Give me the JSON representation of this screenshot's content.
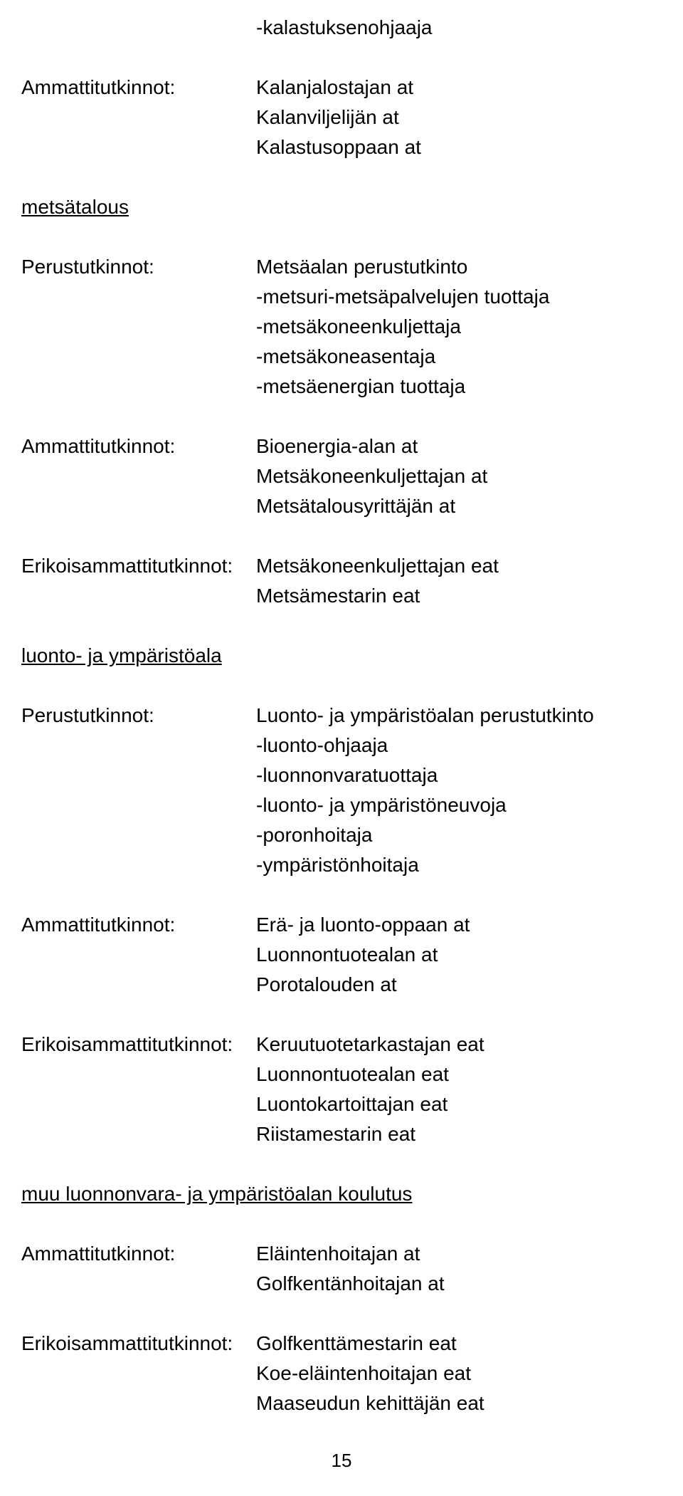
{
  "topOrphan": "-kalastuksenohjaaja",
  "block1": {
    "label": "Ammattitutkinnot:",
    "items": [
      "Kalanjalostajan at",
      "Kalanviljelijän at",
      "Kalastusoppaan at"
    ]
  },
  "heading1": "metsätalous",
  "block2": {
    "label": "Perustutkinnot:",
    "items": [
      "Metsäalan perustutkinto",
      "-metsuri-metsäpalvelujen tuottaja",
      "-metsäkoneenkuljettaja",
      "-metsäkoneasentaja",
      "-metsäenergian tuottaja"
    ]
  },
  "block3": {
    "label": "Ammattitutkinnot:",
    "items": [
      "Bioenergia-alan at",
      "Metsäkoneenkuljettajan at",
      "Metsätalousyrittäjän at"
    ]
  },
  "block4": {
    "label": "Erikoisammattitutkinnot:",
    "items": [
      "Metsäkoneenkuljettajan eat",
      "Metsämestarin eat"
    ]
  },
  "heading2": "luonto- ja ympäristöala",
  "block5": {
    "label": "Perustutkinnot:",
    "items": [
      "Luonto- ja ympäristöalan perustutkinto",
      "-luonto-ohjaaja",
      "-luonnonvaratuottaja",
      "-luonto- ja ympäristöneuvoja",
      "-poronhoitaja",
      "-ympäristönhoitaja"
    ]
  },
  "block6": {
    "label": "Ammattitutkinnot:",
    "items": [
      "Erä- ja luonto-oppaan at",
      "Luonnontuotealan at",
      "Porotalouden at"
    ]
  },
  "block7": {
    "label": "Erikoisammattitutkinnot:",
    "items": [
      "Keruutuotetarkastajan eat",
      "Luonnontuotealan eat",
      "Luontokartoittajan eat",
      "Riistamestarin eat"
    ]
  },
  "heading3": "muu luonnonvara- ja ympäristöalan koulutus",
  "block8": {
    "label": "Ammattitutkinnot:",
    "items": [
      "Eläintenhoitajan at",
      "Golfkentänhoitajan at"
    ]
  },
  "block9": {
    "label": "Erikoisammattitutkinnot:",
    "items": [
      "Golfkenttämestarin eat",
      "Koe-eläintenhoitajan eat",
      "Maaseudun kehittäjän eat"
    ]
  },
  "pageNumber": "15"
}
